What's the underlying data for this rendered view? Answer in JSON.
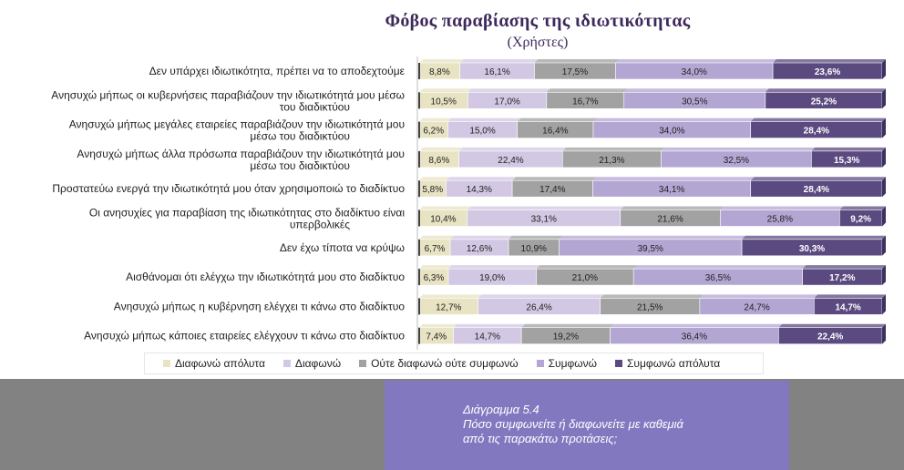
{
  "chart_data": {
    "type": "bar",
    "stacked": true,
    "horizontal": true,
    "title": "Φόβος παραβίασης της ιδιωτικότητας",
    "subtitle": "(Χρήστες)",
    "categories": [
      [
        "Δεν υπάρχει ιδιωτικότητα,  πρέπει να το αποδεχτούμε"
      ],
      [
        "Ανησυχώ μήπως  οι κυβερνήσεις παραβιάζουν  την ιδιωτικότητά  μου μέσω",
        "του διαδικτύου"
      ],
      [
        "Ανησυχώ μήπως  μεγάλες εταιρείες παραβιάζουν  την ιδιωτικότητά  μου",
        "μέσω του διαδικτύου"
      ],
      [
        "Ανησυχώ μήπως  άλλα πρόσωπα παραβιάζουν  την ιδιωτικότητά  μου",
        "μέσω του διαδικτύου"
      ],
      [
        "Προστατεύω ενεργά την ιδιωτικότητά  μου όταν χρησιμοποιώ  το διαδίκτυο"
      ],
      [
        "Οι ανησυχίες για παραβίαση  της ιδιωτικότητας  στο διαδίκτυο  είναι",
        "υπερβολικές"
      ],
      [
        "Δεν έχω τίποτα να κρύψω"
      ],
      [
        "Αισθάνομαι ότι ελέγχω την ιδιωτικότητά  μου στο διαδίκτυο"
      ],
      [
        "Ανησυχώ μήπως  η κυβέρνηση ελέγχει τι κάνω στο διαδίκτυο"
      ],
      [
        "Ανησυχώ μήπως  κάποιες εταιρείες ελέγχουν τι κάνω στο διαδίκτυο"
      ]
    ],
    "series": [
      {
        "name": "Διαφωνώ απόλυτα",
        "color": "#e8e3c3",
        "values": [
          8.8,
          10.5,
          6.2,
          8.6,
          5.8,
          10.4,
          6.7,
          6.3,
          12.7,
          7.4
        ]
      },
      {
        "name": "Διαφωνώ",
        "color": "#d2c8e3",
        "values": [
          16.1,
          17.0,
          15.0,
          22.4,
          14.3,
          33.1,
          12.6,
          19.0,
          26.4,
          14.7
        ]
      },
      {
        "name": "Ούτε διαφωνώ ούτε συμφωνώ",
        "color": "#a2a2a2",
        "values": [
          17.5,
          16.7,
          16.4,
          21.3,
          17.4,
          21.6,
          10.9,
          21.0,
          21.5,
          19.2
        ]
      },
      {
        "name": "Συμφωνώ",
        "color": "#b4a6d3",
        "values": [
          34.0,
          30.5,
          34.0,
          32.5,
          34.1,
          25.8,
          39.5,
          36.5,
          24.7,
          36.4
        ]
      },
      {
        "name": "Συμφωνώ απόλυτα",
        "color": "#5b4a80",
        "values": [
          23.6,
          25.2,
          28.4,
          15.3,
          28.4,
          9.2,
          30.3,
          17.2,
          14.7,
          22.4
        ]
      }
    ],
    "value_labels": [
      [
        "8,8%",
        "16,1%",
        "17,5%",
        "34,0%",
        "23,6%"
      ],
      [
        "10,5%",
        "17,0%",
        "16,7%",
        "30,5%",
        "25,2%"
      ],
      [
        "6,2%",
        "15,0%",
        "16,4%",
        "34,0%",
        "28,4%"
      ],
      [
        "8,6%",
        "22,4%",
        "21,3%",
        "32,5%",
        "15,3%"
      ],
      [
        "5,8%",
        "14,3%",
        "17,4%",
        "34,1%",
        "28,4%"
      ],
      [
        "10,4%",
        "33,1%",
        "21,6%",
        "25,8%",
        "9,2%"
      ],
      [
        "6,7%",
        "12,6%",
        "10,9%",
        "39,5%",
        "30,3%"
      ],
      [
        "6,3%",
        "19,0%",
        "21,0%",
        "36,5%",
        "17,2%"
      ],
      [
        "12,7%",
        "26,4%",
        "21,5%",
        "24,7%",
        "14,7%"
      ],
      [
        "7,4%",
        "14,7%",
        "19,2%",
        "36,4%",
        "22,4%"
      ]
    ],
    "legend_position": "bottom",
    "grid": false
  },
  "caption": {
    "line1": "Διάγραμμα 5.4",
    "line2": "Πόσο συμφωνείτε ή διαφωνείτε με καθεμιά",
    "line3": "από τις παρακάτω προτάσεις;"
  }
}
